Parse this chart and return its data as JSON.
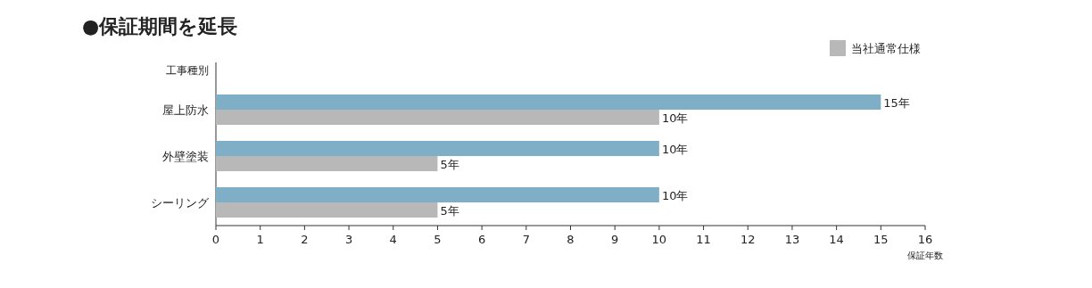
{
  "chart_data": {
    "type": "bar",
    "orientation": "horizontal",
    "title": "●保証期間を延長",
    "ylabel": "工事種別",
    "xlabel": "保証年数",
    "categories": [
      "屋上防水",
      "外壁塗装",
      "シーリング"
    ],
    "series": [
      {
        "color": "#7eafc7",
        "values": [
          15,
          10,
          10
        ],
        "value_labels": [
          "15年",
          "10年",
          "10年"
        ]
      },
      {
        "name": "当社通常仕様",
        "color": "#b8b8b8",
        "values": [
          10,
          5,
          5
        ],
        "value_labels": [
          "10年",
          "5年",
          "5年"
        ]
      }
    ],
    "xlim": [
      0,
      16
    ],
    "xticks": [
      0,
      1,
      2,
      3,
      4,
      5,
      6,
      7,
      8,
      9,
      10,
      11,
      12,
      13,
      14,
      15,
      16
    ],
    "legend": "top right",
    "grid": false
  }
}
